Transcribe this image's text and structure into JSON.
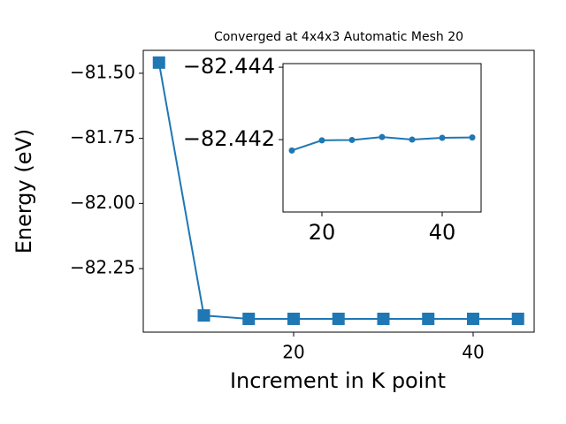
{
  "chart_data": [
    {
      "type": "line",
      "title": "Converged at 4x4x3 Automatic Mesh 20",
      "x_label": "Increment in K point",
      "y_label": "Energy (eV)",
      "x": [
        5,
        10,
        15,
        20,
        25,
        30,
        35,
        40,
        45
      ],
      "series": [
        {
          "color": "#1f77b4",
          "marker": "square",
          "values": [
            -81.459,
            -82.43,
            -82.443,
            -82.443,
            -82.443,
            -82.443,
            -82.443,
            -82.443,
            -82.443
          ]
        }
      ],
      "xlim": [
        3.25,
        46.8
      ],
      "xticks": [
        20,
        40
      ],
      "ylim": [
        -82.494,
        -81.412
      ],
      "yticks": [
        {
          "value": -81.5,
          "label": "−81.50"
        },
        {
          "value": -81.75,
          "label": "−81.75"
        },
        {
          "value": -82.0,
          "label": "−82.00"
        },
        {
          "value": -82.25,
          "label": "−82.25"
        }
      ]
    },
    {
      "type": "line",
      "x": [
        15,
        20,
        25,
        30,
        35,
        40,
        45
      ],
      "series": [
        {
          "color": "#1f77b4",
          "marker": "circle",
          "values": [
            -82.4417,
            -82.44198,
            -82.44199,
            -82.44207,
            -82.442,
            -82.44205,
            -82.44206
          ]
        }
      ],
      "xlim": [
        13.53,
        46.47
      ],
      "xticks": [
        20,
        40
      ],
      "ylim": [
        -82.44,
        -82.4441
      ],
      "yticks": [
        {
          "value": -82.444,
          "label": "−82.444"
        },
        {
          "value": -82.442,
          "label": "−82.442"
        }
      ]
    }
  ]
}
